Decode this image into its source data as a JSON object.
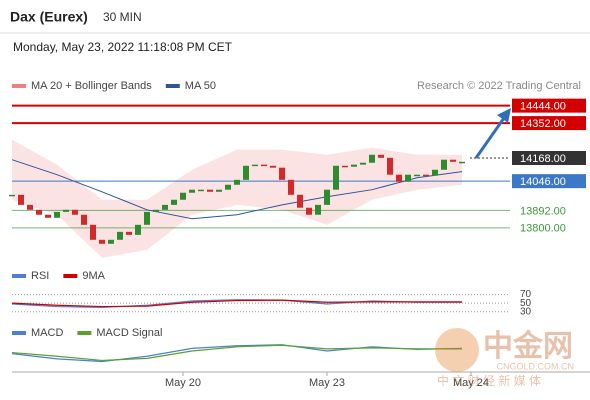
{
  "header": {
    "title": "Dax (Eurex)",
    "interval": "30 MIN",
    "timestamp": "Monday, May 23, 2022 11:18:08 PM CET"
  },
  "watermark": {
    "name": "中金网",
    "site": "CNGOLD.COM.CN",
    "tagline": "中 文 财 经 新 媒 体"
  },
  "chart_data": [
    {
      "type": "candlestick",
      "legend": [
        {
          "name": "MA 20 + Bollinger Bands",
          "color": "#f08080"
        },
        {
          "name": "MA 50",
          "color": "#2f5597"
        }
      ],
      "source": "Research © 2022 Trading Central",
      "categories": [
        null,
        null,
        null,
        null,
        null,
        null,
        null,
        null,
        null,
        null,
        null,
        null,
        null,
        null,
        null,
        null,
        null,
        null,
        null,
        "May 20",
        null,
        null,
        null,
        null,
        null,
        null,
        null,
        null,
        null,
        null,
        null,
        null,
        null,
        null,
        null,
        "May 23",
        null,
        null,
        null,
        null,
        null,
        null,
        null,
        null,
        null,
        null,
        null,
        null,
        null,
        null,
        null,
        "May 24"
      ],
      "close": [
        13974,
        13921,
        13895,
        13869,
        13853,
        13884,
        13895,
        13869,
        13816,
        13737,
        13716,
        13737,
        13779,
        13763,
        13816,
        13884,
        13895,
        13921,
        13948,
        13985,
        14001,
        14001,
        13990,
        14001,
        14027,
        14053,
        14127,
        14133,
        14127,
        14117,
        14053,
        13974,
        13906,
        13869,
        13921,
        14001,
        14127,
        14122,
        14133,
        14143,
        14185,
        14169,
        14080,
        14043,
        14080,
        14080,
        14075,
        14106,
        14159,
        14148,
        14148,
        null
      ],
      "up_color": "#2e8b2e",
      "down_color": "#d22a2a",
      "ylim": [
        13620,
        14500
      ],
      "band": {
        "x": [
          0,
          5,
          10,
          15,
          20,
          25,
          30,
          35,
          40,
          45,
          50
        ],
        "upper": [
          14265,
          14133,
          13948,
          13948,
          14106,
          14212,
          14212,
          14185,
          14222,
          14185,
          14185
        ],
        "lower": [
          13948,
          13869,
          13642,
          13684,
          13869,
          13921,
          13895,
          13816,
          13948,
          14001,
          14027
        ],
        "color": "#fbdcdc"
      },
      "ma50": {
        "x": [
          0,
          5,
          10,
          15,
          20,
          25,
          30,
          35,
          40,
          45,
          50
        ],
        "values": [
          14159,
          14080,
          13990,
          13895,
          13848,
          13869,
          13921,
          13964,
          14001,
          14064,
          14096
        ],
        "color": "#2f5597"
      },
      "levels": [
        {
          "value": 14444,
          "label": "14444.00",
          "color": "#d40000",
          "style": "box"
        },
        {
          "value": 14352,
          "label": "14352.00",
          "color": "#d40000",
          "style": "box"
        },
        {
          "value": 14168,
          "label": "14168.00",
          "color": "#333333",
          "style": "box",
          "dash": true
        },
        {
          "value": 14046,
          "label": "14046.00",
          "color": "#3c78c8",
          "style": "box"
        },
        {
          "value": 13892,
          "label": "13892.00",
          "color": "#3a9a3a",
          "style": "text"
        },
        {
          "value": 13800,
          "label": "13800.00",
          "color": "#3a9a3a",
          "style": "text"
        }
      ]
    },
    {
      "type": "line",
      "x": [
        0,
        5,
        10,
        15,
        20,
        25,
        30,
        35,
        40,
        45,
        50
      ],
      "series": [
        {
          "name": "RSI",
          "color": "#4f7fd0",
          "values": [
            48,
            42,
            40,
            45,
            55,
            58,
            57,
            48,
            55,
            52,
            52
          ]
        },
        {
          "name": "9MA",
          "color": "#d00000",
          "values": [
            50,
            45,
            42,
            43,
            52,
            56,
            57,
            52,
            53,
            53,
            53
          ]
        }
      ],
      "ylim": [
        20,
        90
      ],
      "yticks": [
        70,
        50,
        30
      ]
    },
    {
      "type": "line",
      "x": [
        0,
        5,
        10,
        15,
        20,
        25,
        30,
        35,
        40,
        45,
        50
      ],
      "series": [
        {
          "name": "MACD",
          "color": "#4f7fd0",
          "values": [
            -5,
            -15,
            -20,
            -10,
            5,
            10,
            12,
            0,
            8,
            3,
            5
          ]
        },
        {
          "name": "MACD Signal",
          "color": "#5aa02c",
          "values": [
            -3,
            -10,
            -18,
            -14,
            0,
            8,
            11,
            4,
            6,
            4,
            4
          ]
        }
      ],
      "ylim": [
        -40,
        40
      ]
    }
  ]
}
